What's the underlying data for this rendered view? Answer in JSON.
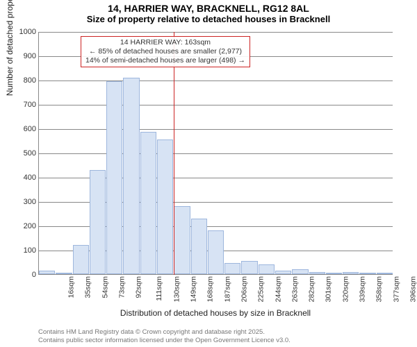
{
  "title": "14, HARRIER WAY, BRACKNELL, RG12 8AL",
  "subtitle": "Size of property relative to detached houses in Bracknell",
  "yaxis_title": "Number of detached properties",
  "xaxis_title": "Distribution of detached houses by size in Bracknell",
  "chart": {
    "type": "histogram",
    "bar_fill": "#d7e3f4",
    "bar_stroke": "#9db6dd",
    "grid_color": "#888888",
    "background": "#ffffff",
    "ylim": [
      0,
      1000
    ],
    "ytick_step": 100,
    "x_labels": [
      "16sqm",
      "35sqm",
      "54sqm",
      "73sqm",
      "92sqm",
      "111sqm",
      "130sqm",
      "149sqm",
      "168sqm",
      "187sqm",
      "206sqm",
      "225sqm",
      "244sqm",
      "263sqm",
      "282sqm",
      "301sqm",
      "320sqm",
      "339sqm",
      "358sqm",
      "377sqm",
      "396sqm"
    ],
    "values": [
      15,
      5,
      120,
      430,
      795,
      810,
      585,
      555,
      280,
      230,
      180,
      45,
      55,
      40,
      15,
      20,
      10,
      5,
      10,
      5,
      5
    ],
    "marker": {
      "color": "#cc2222",
      "at_index": 8,
      "line1": "14 HARRIER WAY: 163sqm",
      "line2": "← 85% of detached houses are smaller (2,977)",
      "line3": "14% of semi-detached houses are larger (498) →"
    }
  },
  "footer_line1": "Contains HM Land Registry data © Crown copyright and database right 2025.",
  "footer_line2": "Contains public sector information licensed under the Open Government Licence v3.0."
}
